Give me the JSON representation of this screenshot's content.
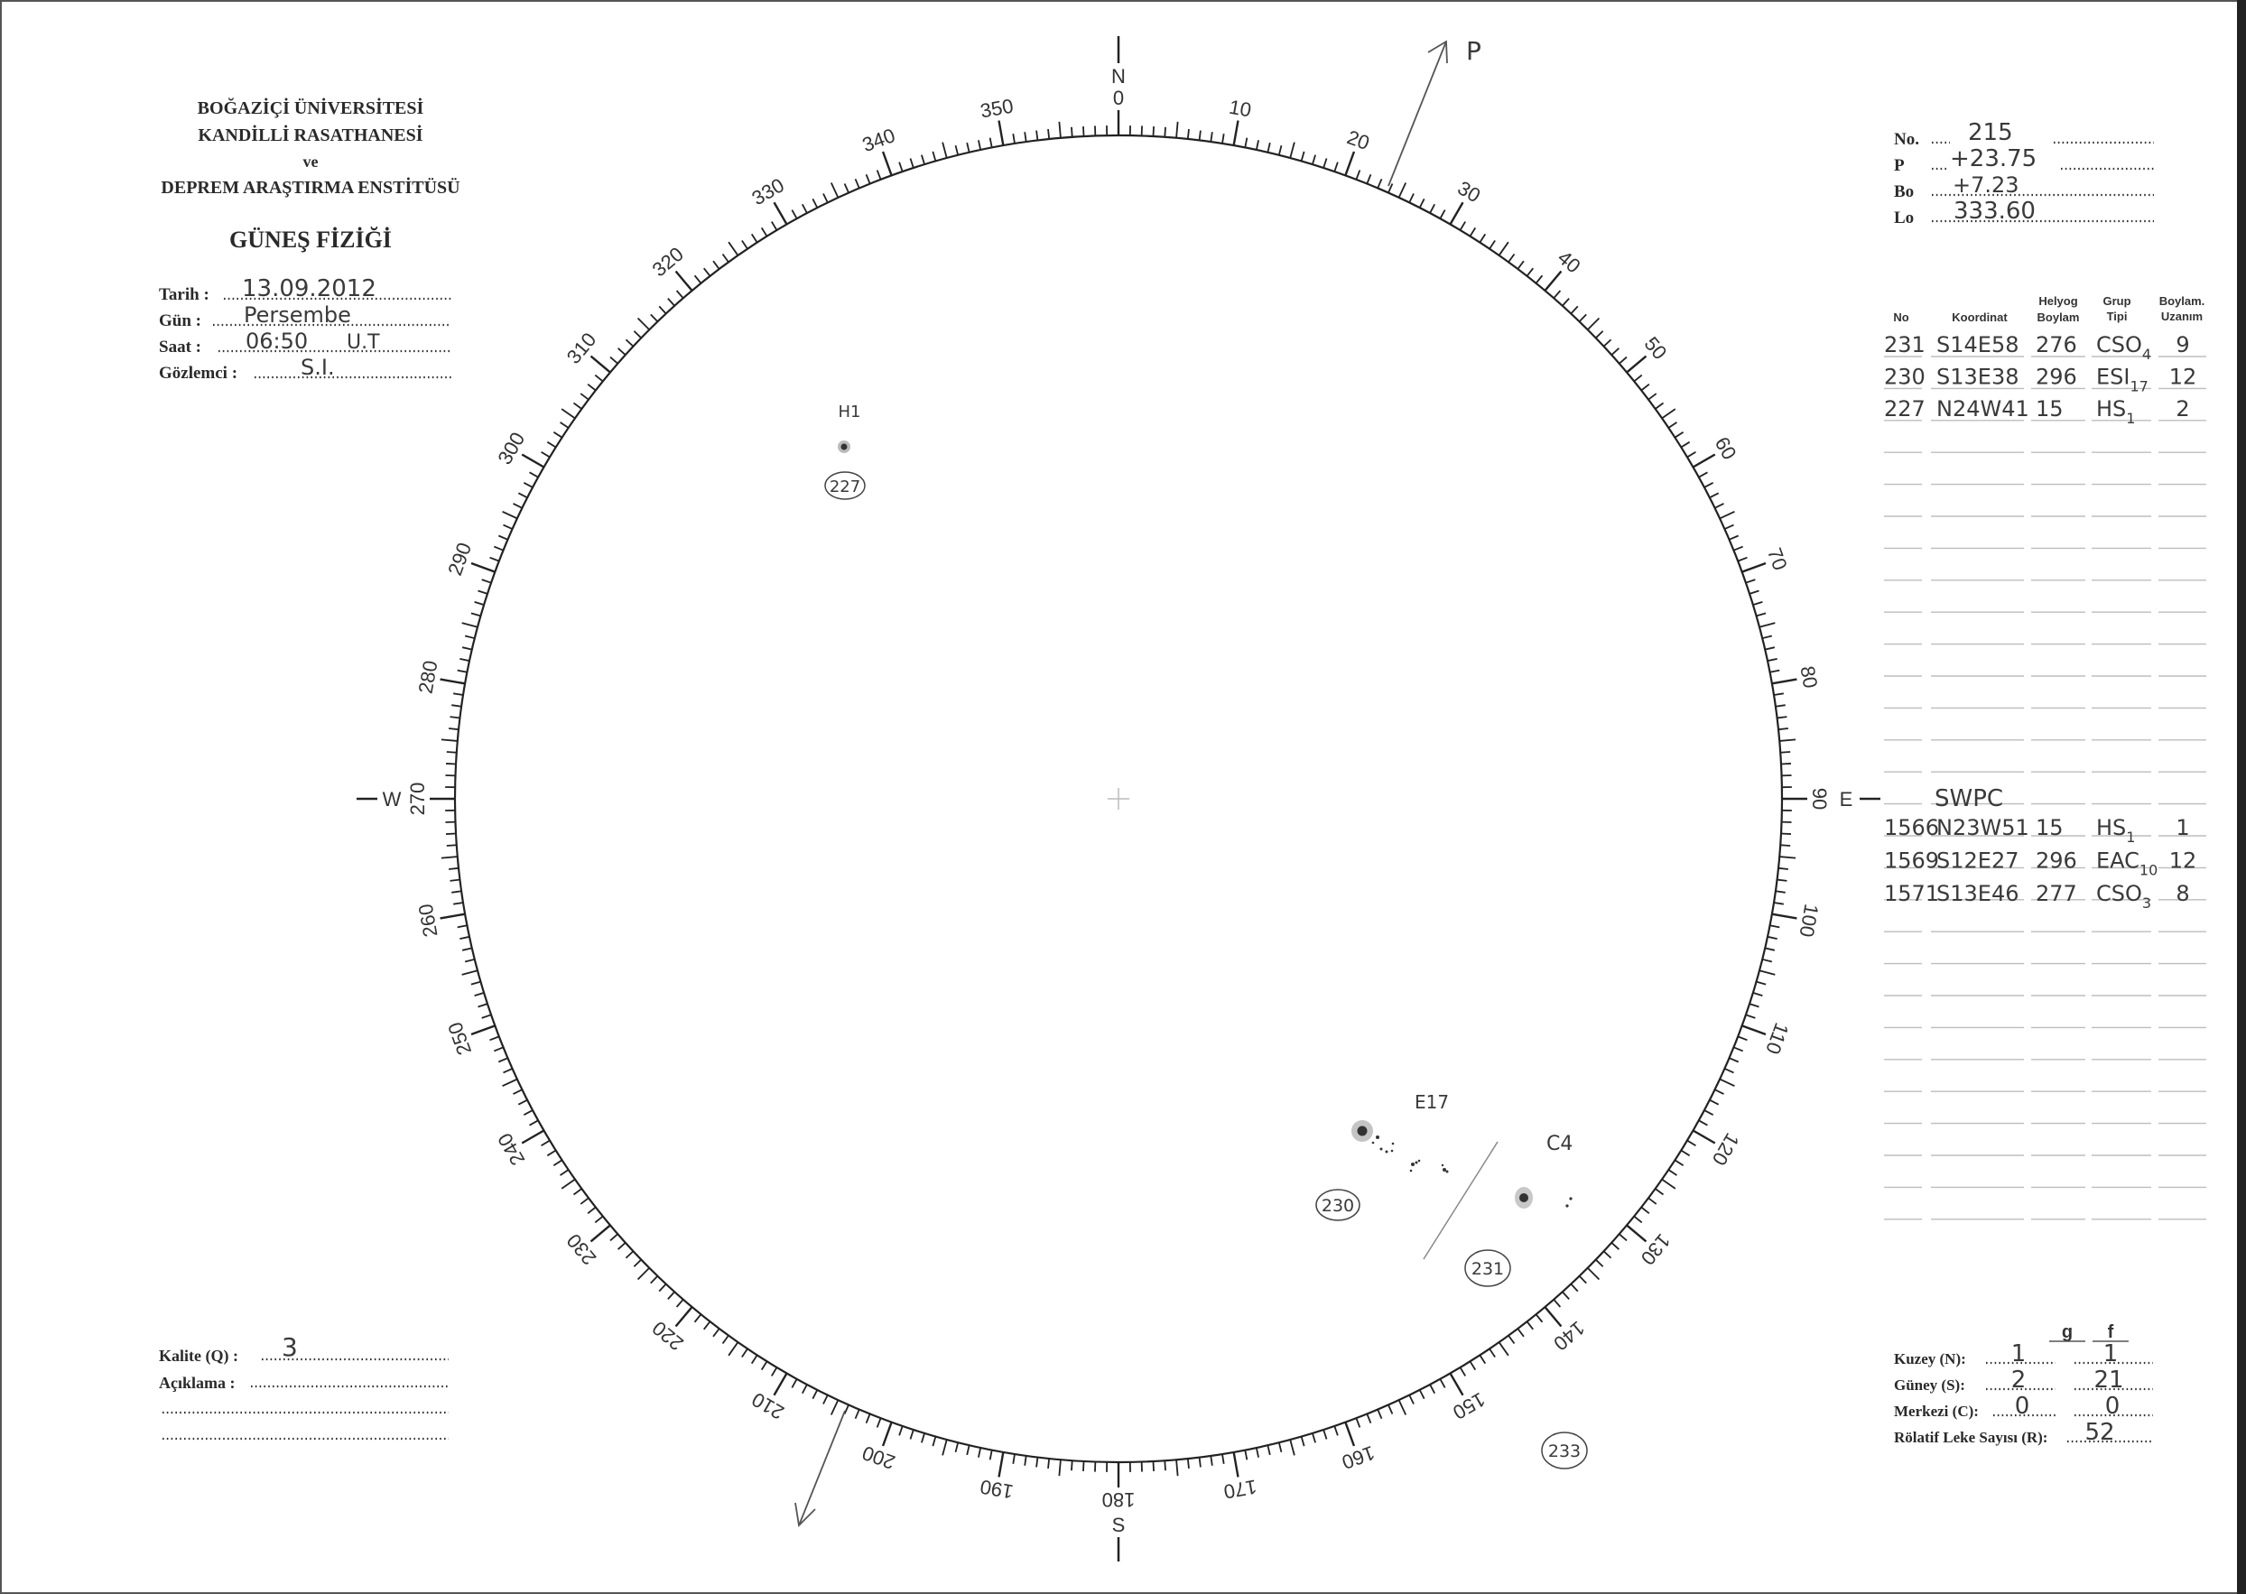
{
  "header": {
    "line1": "BOĞAZİÇİ ÜNİVERSİTESİ",
    "line2": "KANDİLLİ RASATHANESİ",
    "line3": "ve",
    "line4": "DEPREM ARAŞTIRMA ENSTİTÜSÜ",
    "title": "GÜNEŞ FİZİĞİ"
  },
  "observation": {
    "date_label": "Tarih :",
    "date": "13.09.2012",
    "day_label": "Gün :",
    "day": "Persembe",
    "time_label": "Saat :",
    "time": "06:50",
    "time_unit": "U.T",
    "observer_label": "Gözlemci :",
    "observer": "S.I."
  },
  "ephemeris": {
    "no_label": "No.",
    "no": "215",
    "p_label": "P",
    "p": "+23.75",
    "bo_label": "Bo",
    "bo": "+7.23",
    "lo_label": "Lo",
    "lo": "333.60"
  },
  "table": {
    "headers": {
      "no": "No",
      "coord": "Koordinat",
      "helio_1": "Helyog",
      "helio_2": "Boylam",
      "type_1": "Grup",
      "type_2": "Tipi",
      "ext_1": "Boylam.",
      "ext_2": "Uzanım"
    },
    "rows": [
      {
        "no": "231",
        "coord": "S14E58",
        "long": "276",
        "type": "CSO",
        "sub": "4",
        "ext": "9"
      },
      {
        "no": "230",
        "coord": "S13E38",
        "long": "296",
        "type": "ESI",
        "sub": "17",
        "ext": "12"
      },
      {
        "no": "227",
        "coord": "N24W41",
        "long": "15",
        "type": "HS",
        "sub": "1",
        "ext": "2"
      }
    ]
  },
  "swpc": {
    "title": "SWPC",
    "rows": [
      {
        "no": "1566",
        "coord": "N23W51",
        "long": "15",
        "type": "HS",
        "sub": "1",
        "ext": "1"
      },
      {
        "no": "1569",
        "coord": "S12E27",
        "long": "296",
        "type": "EAC",
        "sub": "10",
        "ext": "12"
      },
      {
        "no": "1571",
        "coord": "S13E46",
        "long": "277",
        "type": "CSO",
        "sub": "3",
        "ext": "8"
      }
    ]
  },
  "counts": {
    "g_label": "g",
    "f_label": "f",
    "north_label": "Kuzey (N):",
    "north_g": "1",
    "north_f": "1",
    "south_label": "Güney (S):",
    "south_g": "2",
    "south_f": "21",
    "center_label": "Merkezi (C):",
    "center_g": "0",
    "center_f": "0",
    "relative_label": "Rölatif Leke Sayısı (R):",
    "relative": "52"
  },
  "quality": {
    "label": "Kalite (Q) :",
    "value": "3",
    "comment_label": "Açıklama :"
  },
  "disk": {
    "north": "N",
    "south": "S",
    "east": "E",
    "west": "W",
    "axis_label": "P",
    "scale_labels": [
      "0",
      "10",
      "20",
      "30",
      "40",
      "50",
      "60",
      "70",
      "80",
      "90",
      "100",
      "110",
      "120",
      "130",
      "140",
      "150",
      "160",
      "170",
      "180",
      "190",
      "200",
      "210",
      "220",
      "230",
      "240",
      "250",
      "260",
      "270",
      "280",
      "290",
      "300",
      "310",
      "320",
      "330",
      "340",
      "350"
    ],
    "groups": [
      {
        "id": "227",
        "type_label": "H1"
      },
      {
        "id": "230",
        "type_label": "E17"
      },
      {
        "id": "231",
        "type_label": "C4"
      },
      {
        "id": "233"
      }
    ]
  }
}
